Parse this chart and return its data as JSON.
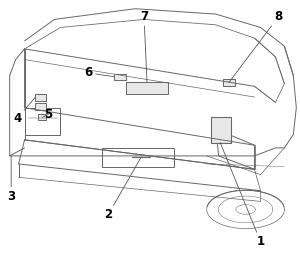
{
  "background_color": "#ffffff",
  "line_color": "#666666",
  "label_color": "#000000",
  "label_fontsize": 8.5,
  "fig_width": 3.0,
  "fig_height": 2.69,
  "dpi": 100
}
